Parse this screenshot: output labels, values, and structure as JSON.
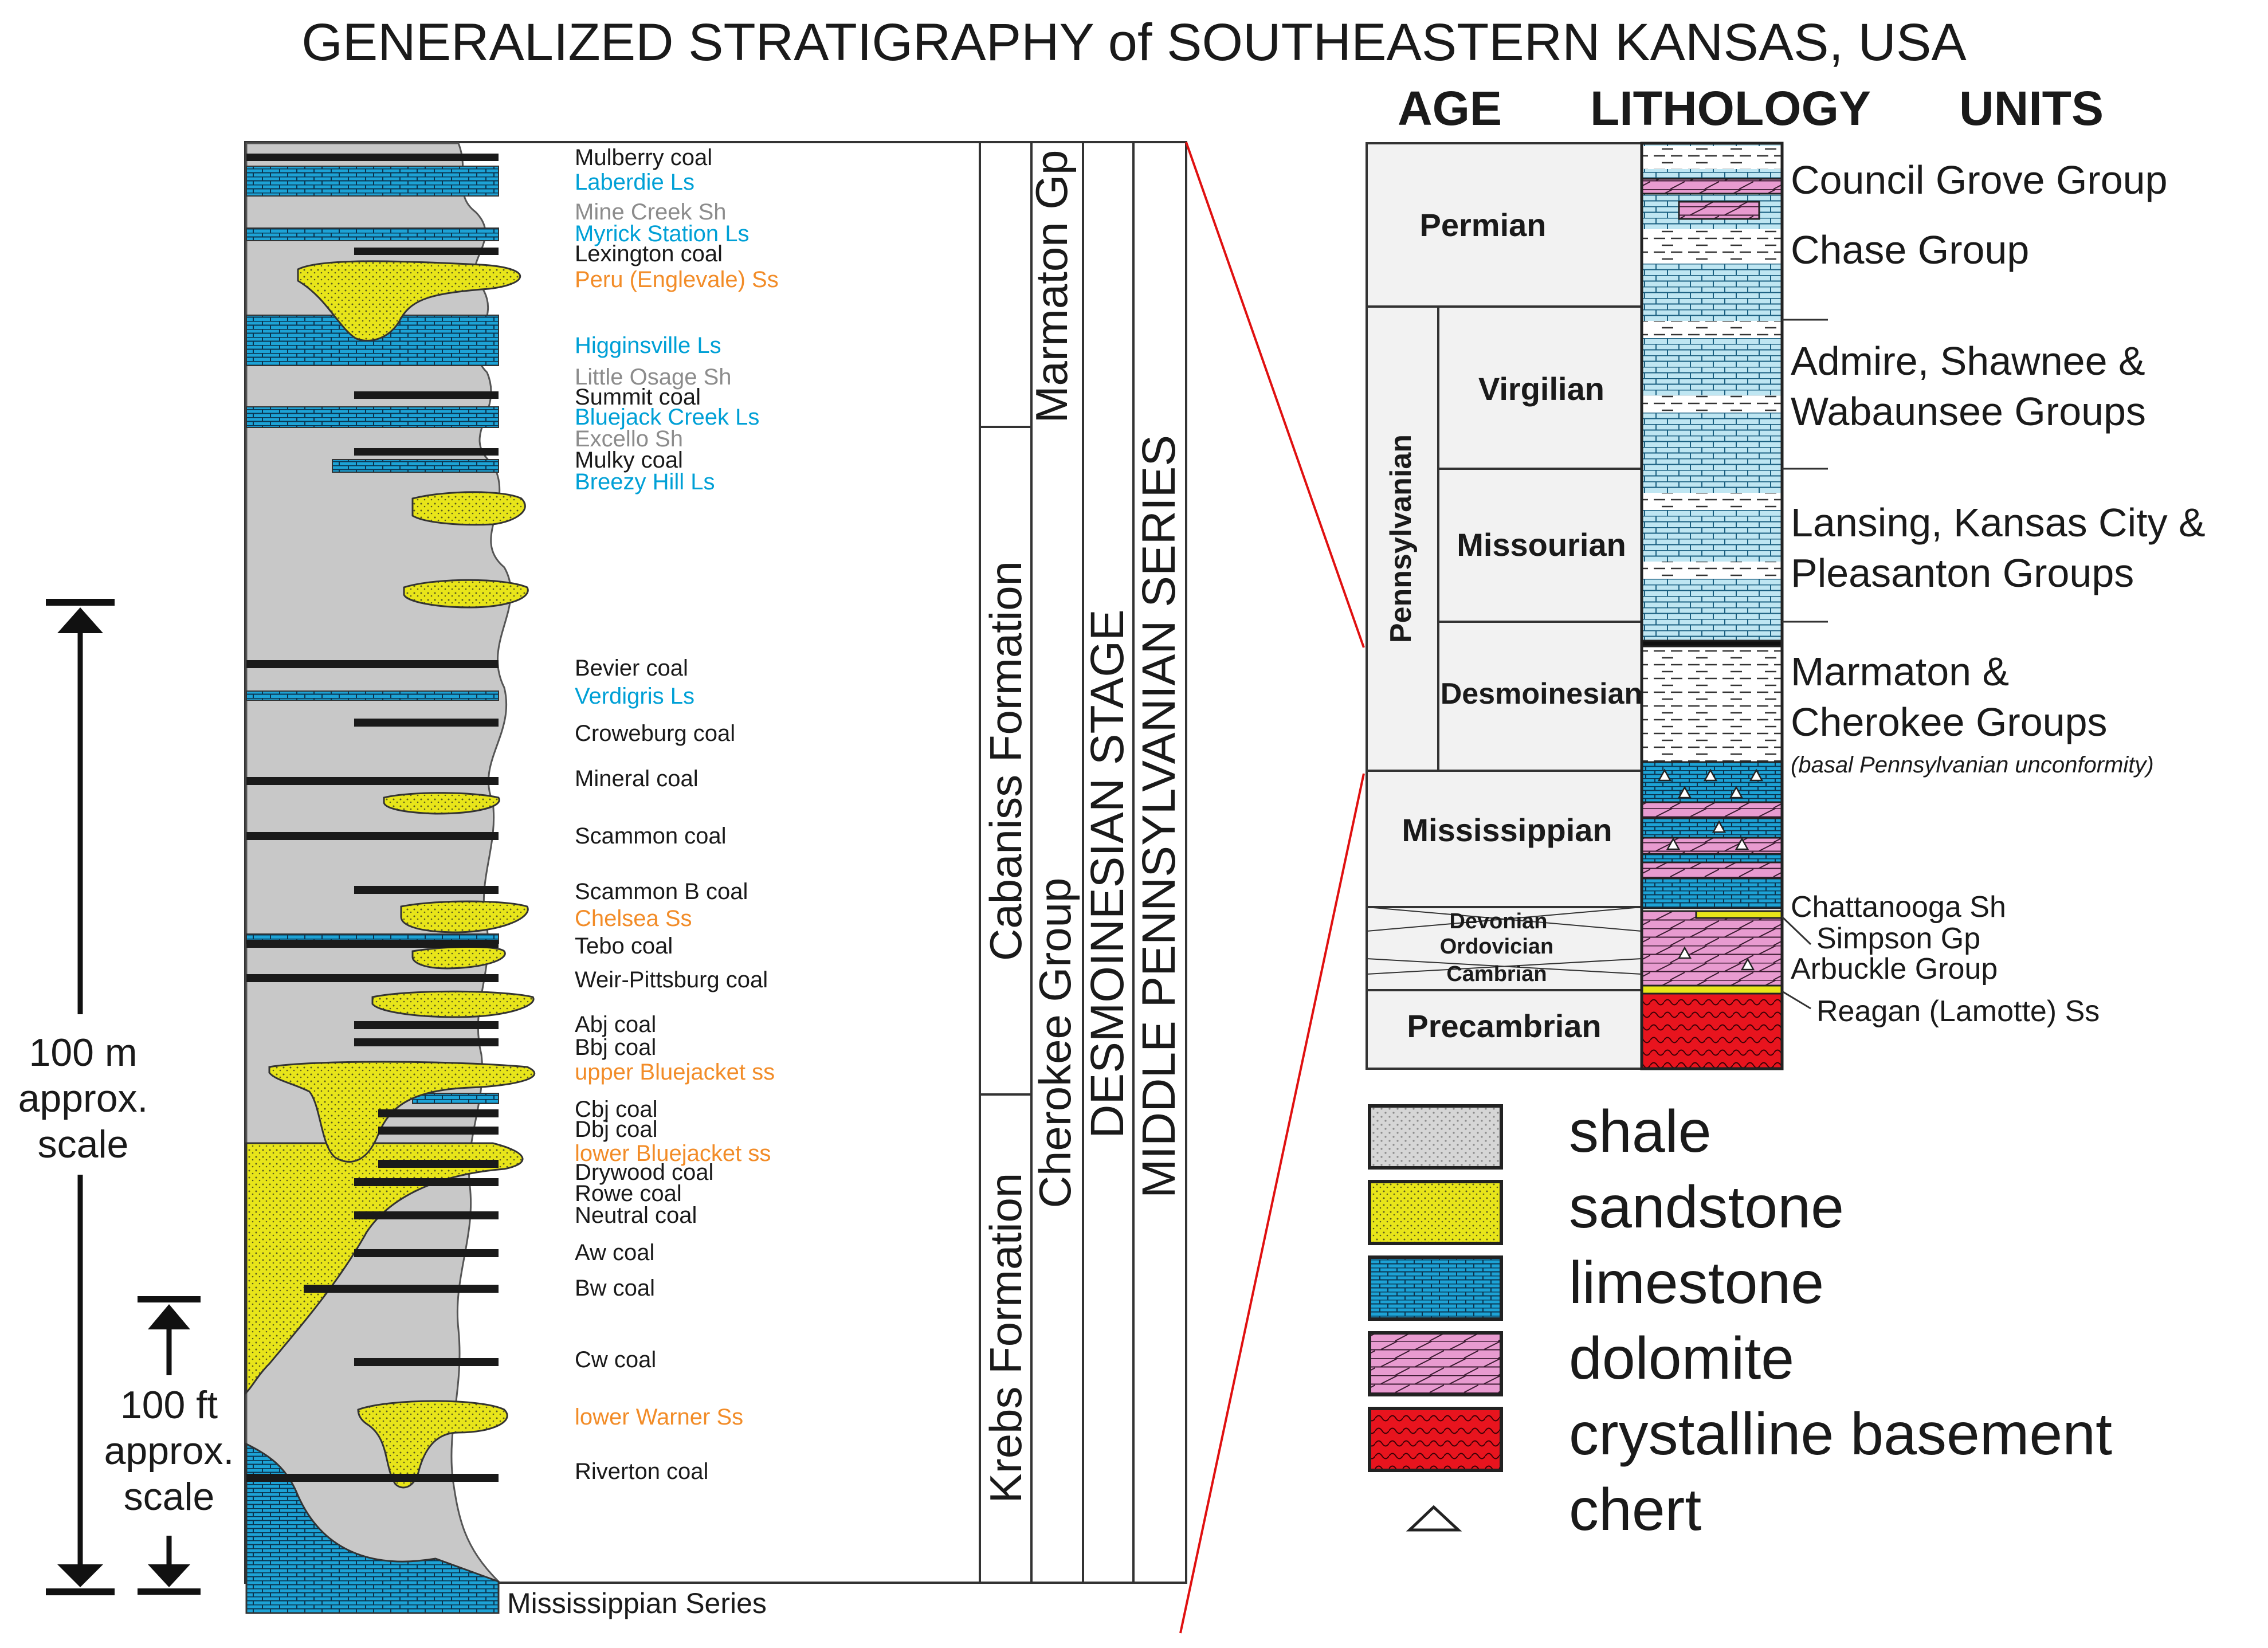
{
  "title": "GENERALIZED STRATIGRAPHY of SOUTHEASTERN KANSAS, USA",
  "colors": {
    "shale": "#c8c8c8",
    "sandstone": "#e8e51a",
    "limestone": "#1da3d6",
    "dolomite": "#e89bd0",
    "basement": "#e8141e",
    "unit_blue": "#00a0d6",
    "unit_orange": "#f28c28",
    "unit_gray": "#8c8c8c"
  },
  "left_column": {
    "units": [
      {
        "name": "Mulberry coal",
        "color": "black"
      },
      {
        "name": "Laberdie Ls",
        "color": "blue"
      },
      {
        "name": "Mine Creek Sh",
        "color": "gray"
      },
      {
        "name": "Myrick Station Ls",
        "color": "blue"
      },
      {
        "name": "Lexington coal",
        "color": "black"
      },
      {
        "name": "Peru (Englevale) Ss",
        "color": "orange"
      },
      {
        "name": "Higginsville Ls",
        "color": "blue"
      },
      {
        "name": "Little Osage Sh",
        "color": "gray"
      },
      {
        "name": "Summit coal",
        "color": "black"
      },
      {
        "name": "Bluejack Creek Ls",
        "color": "blue"
      },
      {
        "name": "Excello Sh",
        "color": "gray"
      },
      {
        "name": "Mulky coal",
        "color": "black"
      },
      {
        "name": "Breezy Hill Ls",
        "color": "blue"
      },
      {
        "name": "Bevier coal",
        "color": "black"
      },
      {
        "name": "Verdigris Ls",
        "color": "blue"
      },
      {
        "name": "Croweburg coal",
        "color": "black"
      },
      {
        "name": "Mineral coal",
        "color": "black"
      },
      {
        "name": "Scammon coal",
        "color": "black"
      },
      {
        "name": "Scammon B coal",
        "color": "black"
      },
      {
        "name": "Chelsea Ss",
        "color": "orange"
      },
      {
        "name": "Tebo coal",
        "color": "black"
      },
      {
        "name": "Weir-Pittsburg coal",
        "color": "black"
      },
      {
        "name": "Abj coal",
        "color": "black"
      },
      {
        "name": "Bbj coal",
        "color": "black"
      },
      {
        "name": "upper Bluejacket ss",
        "color": "orange"
      },
      {
        "name": "Cbj coal",
        "color": "black"
      },
      {
        "name": "Dbj coal",
        "color": "black"
      },
      {
        "name": "lower Bluejacket ss",
        "color": "orange"
      },
      {
        "name": "Drywood coal",
        "color": "black"
      },
      {
        "name": "Rowe coal",
        "color": "black"
      },
      {
        "name": "Neutral coal",
        "color": "black"
      },
      {
        "name": "Aw coal",
        "color": "black"
      },
      {
        "name": "Bw coal",
        "color": "black"
      },
      {
        "name": "Cw coal",
        "color": "black"
      },
      {
        "name": "lower Warner Ss",
        "color": "orange"
      },
      {
        "name": "Riverton coal",
        "color": "black"
      }
    ],
    "base_label": "Mississippian Series",
    "formations": {
      "marmaton": "Marmaton Gp",
      "cabaniss": "Cabaniss Formation",
      "krebs": "Krebs Formation",
      "cherokee": "Cherokee Group",
      "stage": "DESMOINESIAN STAGE",
      "series": "MIDDLE PENNSYLVANIAN SERIES"
    },
    "scales": {
      "m_scale": [
        "100 m",
        "approx.",
        "scale"
      ],
      "ft_scale": [
        "100 ft",
        "approx.",
        "scale"
      ]
    }
  },
  "right_column": {
    "headers": {
      "age": "AGE",
      "lithology": "LITHOLOGY",
      "units": "UNITS"
    },
    "ages": {
      "permian": "Permian",
      "pennsylvanian": "Pennsylvanian",
      "virgilian": "Virgilian",
      "missourian": "Missourian",
      "desmoinesian": "Desmoinesian",
      "mississippian": "Mississippian",
      "devonian": "Devonian",
      "ordovician": "Ordovician",
      "cambrian": "Cambrian",
      "precambrian": "Precambrian"
    },
    "units": {
      "council_grove": "Council Grove Group",
      "chase": "Chase Group",
      "admire_1": "Admire, Shawnee &",
      "admire_2": "Wabaunsee Groups",
      "lansing_1": "Lansing, Kansas City &",
      "lansing_2": "Pleasanton Groups",
      "marmaton_1": "Marmaton &",
      "marmaton_2": "Cherokee Groups",
      "unconformity": "(basal Pennsylvanian unconformity)",
      "chattanooga": "Chattanooga Sh",
      "simpson": "Simpson Gp",
      "arbuckle": "Arbuckle Group",
      "reagan": "Reagan (Lamotte) Ss"
    }
  },
  "legend": [
    {
      "name": "shale",
      "swatch": "shale"
    },
    {
      "name": "sandstone",
      "swatch": "sandstone"
    },
    {
      "name": "limestone",
      "swatch": "limestone"
    },
    {
      "name": "dolomite",
      "swatch": "dolomite"
    },
    {
      "name": "crystalline basement",
      "swatch": "basement"
    },
    {
      "name": "chert",
      "swatch": "chert"
    }
  ]
}
